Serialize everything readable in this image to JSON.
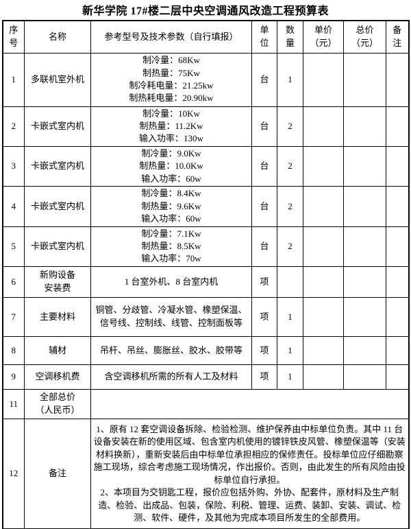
{
  "title": "新华学院 17#楼二层中央空调通风改造工程预算表",
  "table": {
    "headers": {
      "no": "序\n号",
      "name": "名称",
      "spec": "参考型号及技术参数（自行填报）",
      "unit": "单\n位",
      "qty": "数\n量",
      "unit_price": "单价\n（元）",
      "total_price": "总价\n（元）",
      "remark": "备\n注"
    },
    "rows": [
      {
        "no": "1",
        "name": "多联机室外机",
        "spec": "制冷量：68Kw\n制热量：75Kw\n制冷耗电量：21.25kw\n制热耗电量：20.90kw",
        "unit": "台",
        "qty": "1",
        "unit_price": "",
        "total_price": "",
        "remark": ""
      },
      {
        "no": "2",
        "name": "卡嵌式室内机",
        "spec": "制冷量：10Kw\n制热量：11.2Kw\n输入功率：130w",
        "unit": "台",
        "qty": "2",
        "unit_price": "",
        "total_price": "",
        "remark": ""
      },
      {
        "no": "3",
        "name": "卡嵌式室内机",
        "spec": "制冷量：9.0Kw\n制热量：10.0Kw\n输入功率：60w",
        "unit": "台",
        "qty": "2",
        "unit_price": "",
        "total_price": "",
        "remark": ""
      },
      {
        "no": "4",
        "name": "卡嵌式室内机",
        "spec": "制冷量：8.4Kw\n制热量：9.6Kw\n输入功率：60w",
        "unit": "台",
        "qty": "2",
        "unit_price": "",
        "total_price": "",
        "remark": ""
      },
      {
        "no": "5",
        "name": "卡嵌式室内机",
        "spec": "制冷量：7.1Kw\n制热量：8.5Kw\n输入功率：70w",
        "unit": "台",
        "qty": "2",
        "unit_price": "",
        "total_price": "",
        "remark": ""
      },
      {
        "no": "6",
        "name": "新购设备\n安装费",
        "spec": "1 台室外机、8 台室内机",
        "unit": "项",
        "qty": "",
        "unit_price": "",
        "total_price": "",
        "remark": ""
      },
      {
        "no": "7",
        "name": "主要材料",
        "spec": "铜管、分歧管、冷凝水管、橡塑保温、信号线、控制线、线管、控制面板等",
        "unit": "项",
        "qty": "1",
        "unit_price": "",
        "total_price": "",
        "remark": ""
      },
      {
        "no": "8",
        "name": "辅材",
        "spec": "吊杆、吊丝、膨胀丝、胶水、胶带等",
        "unit": "项",
        "qty": "1",
        "unit_price": "",
        "total_price": "",
        "remark": ""
      },
      {
        "no": "9",
        "name": "空调移机费",
        "spec": "含空调移机所需的所有人工及材料",
        "unit": "项",
        "qty": "1",
        "unit_price": "",
        "total_price": "",
        "remark": ""
      }
    ],
    "total_row": {
      "no": "11",
      "name": "全部总价\n（人民币）",
      "value": ""
    },
    "remark_row": {
      "no": "12",
      "name": "备注",
      "text": "1、原有 12 套空调设备拆除、检验检测、维护保养由中标单位负责。其中 11 台设备安装在新的使用区域、包含室内机使用的镀锌铁皮风管、橡塑保温等（安装材料换新），重新安装后由中标单位承担相应的保修责任。投标单位应仔细勘察施工现场，综合考虑施工现场情况，作出报价。否则，由此发生的所有风险由投标单位自行承担。\n2、本项目为交钥匙工程，报价应包括外购、外协、配套件，原材料及生产制造、检验、出成品、包装，保险、利税、管理、运费、装卸、安装、调试、检测、软件、硬件，及其他为完成本项目所发生的全部费用。"
    }
  }
}
